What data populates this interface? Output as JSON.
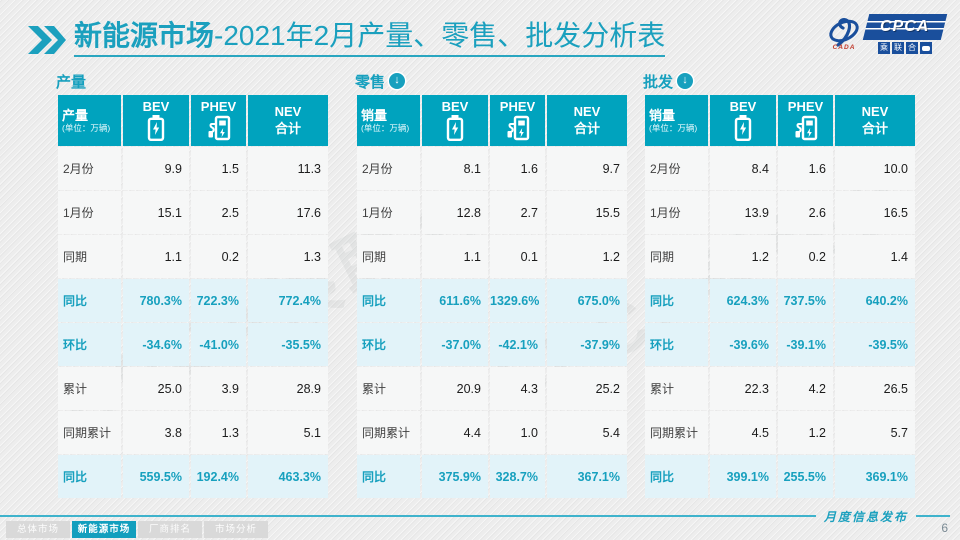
{
  "title": {
    "bold": "新能源市场",
    "rest": "-2021年2月产量、零售、批发分析表"
  },
  "logo": {
    "cpca": "CPCA",
    "cada": "CADA",
    "sub_chars": [
      "乘",
      "联",
      "合"
    ]
  },
  "watermark": "CPCA乘联合",
  "colors": {
    "accent_teal": "#17A0BE",
    "table_header_bg": "#00A3BE",
    "highlight_row_bg": "#E2F3F9",
    "logo_blue": "#1A4F9C"
  },
  "tables": [
    {
      "section_title": "产量",
      "has_down_icon": false,
      "header": {
        "label": "产量",
        "unit": "(单位：万辆)",
        "col_bev": "BEV",
        "col_phev": "PHEV",
        "col_nev_line1": "NEV",
        "col_nev_line2": "合计"
      },
      "rows": [
        {
          "label": "2月份",
          "values": [
            "9.9",
            "1.5",
            "11.3"
          ],
          "highlight": false
        },
        {
          "label": "1月份",
          "values": [
            "15.1",
            "2.5",
            "17.6"
          ],
          "highlight": false
        },
        {
          "label": "同期",
          "values": [
            "1.1",
            "0.2",
            "1.3"
          ],
          "highlight": false
        },
        {
          "label": "同比",
          "values": [
            "780.3%",
            "722.3%",
            "772.4%"
          ],
          "highlight": true
        },
        {
          "label": "环比",
          "values": [
            "-34.6%",
            "-41.0%",
            "-35.5%"
          ],
          "highlight": true
        },
        {
          "label": "累计",
          "values": [
            "25.0",
            "3.9",
            "28.9"
          ],
          "highlight": false
        },
        {
          "label": "同期累计",
          "values": [
            "3.8",
            "1.3",
            "5.1"
          ],
          "highlight": false
        },
        {
          "label": "同比",
          "values": [
            "559.5%",
            "192.4%",
            "463.3%"
          ],
          "highlight": true
        }
      ]
    },
    {
      "section_title": "零售",
      "has_down_icon": true,
      "header": {
        "label": "销量",
        "unit": "(单位：万辆)",
        "col_bev": "BEV",
        "col_phev": "PHEV",
        "col_nev_line1": "NEV",
        "col_nev_line2": "合计"
      },
      "rows": [
        {
          "label": "2月份",
          "values": [
            "8.1",
            "1.6",
            "9.7"
          ],
          "highlight": false
        },
        {
          "label": "1月份",
          "values": [
            "12.8",
            "2.7",
            "15.5"
          ],
          "highlight": false
        },
        {
          "label": "同期",
          "values": [
            "1.1",
            "0.1",
            "1.2"
          ],
          "highlight": false
        },
        {
          "label": "同比",
          "values": [
            "611.6%",
            "1329.6%",
            "675.0%"
          ],
          "highlight": true
        },
        {
          "label": "环比",
          "values": [
            "-37.0%",
            "-42.1%",
            "-37.9%"
          ],
          "highlight": true
        },
        {
          "label": "累计",
          "values": [
            "20.9",
            "4.3",
            "25.2"
          ],
          "highlight": false
        },
        {
          "label": "同期累计",
          "values": [
            "4.4",
            "1.0",
            "5.4"
          ],
          "highlight": false
        },
        {
          "label": "同比",
          "values": [
            "375.9%",
            "328.7%",
            "367.1%"
          ],
          "highlight": true
        }
      ]
    },
    {
      "section_title": "批发",
      "has_down_icon": true,
      "header": {
        "label": "销量",
        "unit": "(单位：万辆)",
        "col_bev": "BEV",
        "col_phev": "PHEV",
        "col_nev_line1": "NEV",
        "col_nev_line2": "合计"
      },
      "rows": [
        {
          "label": "2月份",
          "values": [
            "8.4",
            "1.6",
            "10.0"
          ],
          "highlight": false
        },
        {
          "label": "1月份",
          "values": [
            "13.9",
            "2.6",
            "16.5"
          ],
          "highlight": false
        },
        {
          "label": "同期",
          "values": [
            "1.2",
            "0.2",
            "1.4"
          ],
          "highlight": false
        },
        {
          "label": "同比",
          "values": [
            "624.3%",
            "737.5%",
            "640.2%"
          ],
          "highlight": true
        },
        {
          "label": "环比",
          "values": [
            "-39.6%",
            "-39.1%",
            "-39.5%"
          ],
          "highlight": true
        },
        {
          "label": "累计",
          "values": [
            "22.3",
            "4.2",
            "26.5"
          ],
          "highlight": false
        },
        {
          "label": "同期累计",
          "values": [
            "4.5",
            "1.2",
            "5.7"
          ],
          "highlight": false
        },
        {
          "label": "同比",
          "values": [
            "399.1%",
            "255.5%",
            "369.1%"
          ],
          "highlight": true
        }
      ]
    }
  ],
  "footer": {
    "tabs": [
      {
        "label": "总体市场",
        "active": false
      },
      {
        "label": "新能源市场",
        "active": true
      },
      {
        "label": "厂商排名",
        "active": false
      },
      {
        "label": "市场分析",
        "active": false
      }
    ],
    "publication": "月度信息发布",
    "page_number": "6"
  }
}
